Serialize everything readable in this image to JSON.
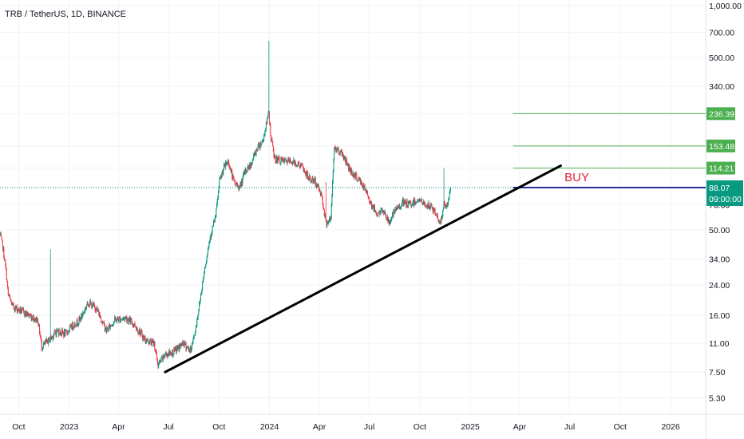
{
  "header": {
    "title": "TRB / TetherUS, 1D, BINANCE"
  },
  "colors": {
    "up": "#089981",
    "down": "#f23645",
    "level": "#4caf50",
    "buy_line": "#2e2e9a",
    "price_tag": "#089981",
    "trendline": "#000000",
    "buy_text": "#e0202f"
  },
  "price_tag": {
    "price": "88.07",
    "countdown": "09:00:00",
    "hidden_tick": "70.00"
  },
  "annotation": {
    "buy_label": "BUY"
  },
  "chart_data": {
    "type": "candlestick",
    "title": "TRB / TetherUS, 1D, BINANCE",
    "y_scale": "log",
    "ylim": [
      4.6,
      1000
    ],
    "x_range": [
      "2022-08-28",
      "2026-03-06"
    ],
    "yticks": [
      "1,000.00",
      "700.00",
      "500.00",
      "340.00",
      "236.39",
      "153.48",
      "114.21",
      "88.07",
      "70.00",
      "50.00",
      "34.00",
      "24.00",
      "16.00",
      "11.00",
      "7.50",
      "5.30"
    ],
    "ytick_values": [
      1000,
      700,
      500,
      340,
      236.39,
      153.48,
      114.21,
      88.07,
      70,
      50,
      34,
      24,
      16,
      11,
      7.5,
      5.3
    ],
    "xticks": [
      "Oct",
      "2023",
      "Apr",
      "Jul",
      "Oct",
      "2024",
      "Apr",
      "Jul",
      "Oct",
      "2025",
      "Apr",
      "Jul",
      "Oct",
      "2026"
    ],
    "xtick_dates": [
      "2022-10-01",
      "2023-01-01",
      "2023-04-01",
      "2023-07-01",
      "2023-10-01",
      "2024-01-01",
      "2024-04-01",
      "2024-07-01",
      "2024-10-01",
      "2025-01-01",
      "2025-04-01",
      "2025-07-01",
      "2025-10-01",
      "2026-01-01"
    ],
    "price_path": [
      [
        "2022-08-28",
        47
      ],
      [
        "2022-09-02",
        40
      ],
      [
        "2022-09-08",
        29
      ],
      [
        "2022-09-12",
        21
      ],
      [
        "2022-09-20",
        18
      ],
      [
        "2022-10-05",
        17
      ],
      [
        "2022-10-20",
        16
      ],
      [
        "2022-11-05",
        15
      ],
      [
        "2022-11-12",
        10.5
      ],
      [
        "2022-11-25",
        11.5
      ],
      [
        "2022-12-10",
        13
      ],
      [
        "2022-12-25",
        12.5
      ],
      [
        "2023-01-08",
        14
      ],
      [
        "2023-01-20",
        15
      ],
      [
        "2023-02-05",
        19
      ],
      [
        "2023-02-20",
        17.5
      ],
      [
        "2023-03-10",
        13
      ],
      [
        "2023-03-25",
        15
      ],
      [
        "2023-04-15",
        15.5
      ],
      [
        "2023-05-01",
        14
      ],
      [
        "2023-05-20",
        11.5
      ],
      [
        "2023-06-05",
        11
      ],
      [
        "2023-06-12",
        8.2
      ],
      [
        "2023-06-25",
        9.5
      ],
      [
        "2023-07-10",
        9.8
      ],
      [
        "2023-07-28",
        11
      ],
      [
        "2023-08-10",
        10
      ],
      [
        "2023-08-18",
        12.5
      ],
      [
        "2023-08-28",
        20
      ],
      [
        "2023-09-05",
        30
      ],
      [
        "2023-09-15",
        46
      ],
      [
        "2023-09-25",
        60
      ],
      [
        "2023-10-02",
        95
      ],
      [
        "2023-10-10",
        115
      ],
      [
        "2023-10-18",
        125
      ],
      [
        "2023-10-28",
        95
      ],
      [
        "2023-11-08",
        88
      ],
      [
        "2023-11-18",
        110
      ],
      [
        "2023-11-28",
        120
      ],
      [
        "2023-12-10",
        150
      ],
      [
        "2023-12-20",
        165
      ],
      [
        "2023-12-31",
        240
      ],
      [
        "2024-01-03",
        180
      ],
      [
        "2024-01-10",
        130
      ],
      [
        "2024-01-25",
        125
      ],
      [
        "2024-02-10",
        125
      ],
      [
        "2024-02-28",
        118
      ],
      [
        "2024-03-12",
        100
      ],
      [
        "2024-03-25",
        95
      ],
      [
        "2024-04-05",
        80
      ],
      [
        "2024-04-13",
        55
      ],
      [
        "2024-04-22",
        58
      ],
      [
        "2024-04-28",
        150
      ],
      [
        "2024-05-12",
        140
      ],
      [
        "2024-05-28",
        110
      ],
      [
        "2024-06-15",
        95
      ],
      [
        "2024-06-28",
        80
      ],
      [
        "2024-07-05",
        70
      ],
      [
        "2024-07-15",
        62
      ],
      [
        "2024-07-28",
        65
      ],
      [
        "2024-08-05",
        55
      ],
      [
        "2024-08-18",
        65
      ],
      [
        "2024-08-30",
        72
      ],
      [
        "2024-09-12",
        70
      ],
      [
        "2024-09-28",
        75
      ],
      [
        "2024-10-10",
        70
      ],
      [
        "2024-10-22",
        68
      ],
      [
        "2024-10-30",
        62
      ],
      [
        "2024-11-08",
        55
      ],
      [
        "2024-11-14",
        70
      ],
      [
        "2024-11-20",
        68
      ],
      [
        "2024-11-26",
        88.07
      ]
    ],
    "wick_highs": [
      {
        "date": "2022-11-28",
        "value": 38.67
      },
      {
        "date": "2023-12-31",
        "value": 625
      },
      {
        "date": "2024-04-13",
        "value": 95
      },
      {
        "date": "2024-11-14",
        "value": 114.21
      }
    ],
    "levels": [
      {
        "value": 236.39,
        "label": "236.39",
        "from": "2025-03-20"
      },
      {
        "value": 153.48,
        "label": "153.48",
        "from": "2025-03-20"
      },
      {
        "value": 114.21,
        "label": "114.21",
        "from": "2025-03-20"
      },
      {
        "value": 88.07,
        "label": "",
        "from": "2025-03-20"
      }
    ],
    "trendline": {
      "start": [
        "2023-06-25",
        7.5
      ],
      "end": [
        "2025-06-15",
        118
      ]
    },
    "buy_annotation": {
      "text": "BUY",
      "date": "2025-04-10",
      "value": 96
    }
  }
}
